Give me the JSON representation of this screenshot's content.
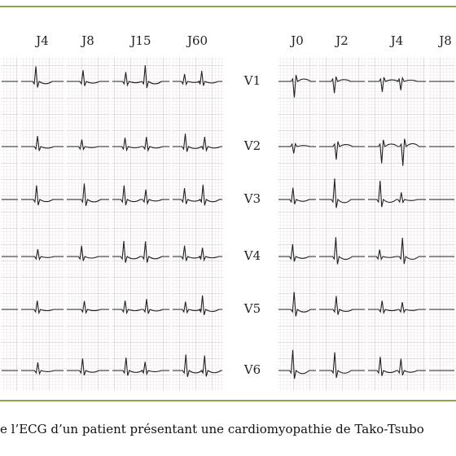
{
  "columns_left": [
    "J4",
    "J8",
    "J15",
    "J60"
  ],
  "columns_right": [
    "J0",
    "J2",
    "J4",
    "J8"
  ],
  "leads": [
    "V1",
    "V2",
    "V3",
    "V4",
    "V5",
    "V6"
  ],
  "caption": "e l’ECG d’un patient présentant une cardiomyopathie de Tako-Tsubo"
}
